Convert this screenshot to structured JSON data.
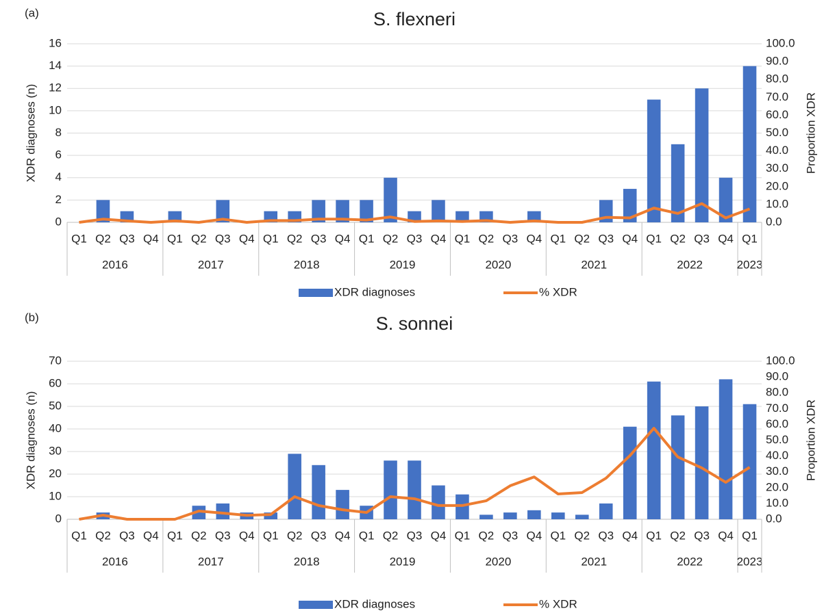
{
  "chart_data": [
    {
      "type": "bar",
      "panel_label": "(a)",
      "title": "S. flexneri",
      "y_label": "XDR diagnoses (n)",
      "y2_label": "Proportion XDR",
      "categories": [
        "Q1",
        "Q2",
        "Q3",
        "Q4",
        "Q1",
        "Q2",
        "Q3",
        "Q4",
        "Q1",
        "Q2",
        "Q3",
        "Q4",
        "Q1",
        "Q2",
        "Q3",
        "Q4",
        "Q1",
        "Q2",
        "Q3",
        "Q4",
        "Q1",
        "Q2",
        "Q3",
        "Q4",
        "Q1",
        "Q2",
        "Q3",
        "Q4",
        "Q1"
      ],
      "groups": [
        {
          "label": "2016",
          "size": 4
        },
        {
          "label": "2017",
          "size": 4
        },
        {
          "label": "2018",
          "size": 4
        },
        {
          "label": "2019",
          "size": 4
        },
        {
          "label": "2020",
          "size": 4
        },
        {
          "label": "2021",
          "size": 4
        },
        {
          "label": "2022",
          "size": 4
        },
        {
          "label": "2023",
          "size": 1
        }
      ],
      "series": [
        {
          "name": "XDR diagnoses",
          "type": "bar",
          "axis": "y",
          "color": "#4472c4",
          "values": [
            0,
            2,
            1,
            0,
            1,
            0,
            2,
            0,
            1,
            1,
            2,
            2,
            2,
            4,
            1,
            2,
            1,
            1,
            0,
            1,
            0,
            0,
            2,
            3,
            11,
            7,
            12,
            4,
            14
          ]
        },
        {
          "name": "% XDR",
          "type": "line",
          "axis": "y2",
          "color": "#ed7d31",
          "values": [
            0,
            1.8,
            0.8,
            0,
            0.8,
            0,
            1.8,
            0,
            1,
            1,
            1.8,
            1.8,
            1.3,
            3,
            0.5,
            0.8,
            0.5,
            1,
            0,
            0.8,
            0,
            0,
            2.8,
            2.5,
            8,
            5,
            10.5,
            2.5,
            7.5
          ]
        }
      ],
      "ylim": [
        0,
        16
      ],
      "yticks": [
        0,
        2,
        4,
        6,
        8,
        10,
        12,
        14,
        16
      ],
      "y2lim": [
        0,
        100
      ],
      "y2ticks": [
        {
          "value": 0,
          "label": "0.0"
        },
        {
          "value": 10,
          "label": "10.0"
        },
        {
          "value": 20,
          "label": "20.0"
        },
        {
          "value": 30,
          "label": "30.0"
        },
        {
          "value": 40,
          "label": "40.0"
        },
        {
          "value": 50,
          "label": "50.0"
        },
        {
          "value": 60,
          "label": "60.0"
        },
        {
          "value": 70,
          "label": "70.0"
        },
        {
          "value": 80,
          "label": "80.0"
        },
        {
          "value": 90,
          "label": "90.0"
        },
        {
          "value": 100,
          "label": "100.0"
        }
      ],
      "grid": true,
      "legend": "bottom"
    },
    {
      "type": "bar",
      "panel_label": "(b)",
      "title": "S. sonnei",
      "y_label": "XDR diagnoses (n)",
      "y2_label": "Proportion XDR",
      "categories": [
        "Q1",
        "Q2",
        "Q3",
        "Q4",
        "Q1",
        "Q2",
        "Q3",
        "Q4",
        "Q1",
        "Q2",
        "Q3",
        "Q4",
        "Q1",
        "Q2",
        "Q3",
        "Q4",
        "Q1",
        "Q2",
        "Q3",
        "Q4",
        "Q1",
        "Q2",
        "Q3",
        "Q4",
        "Q1",
        "Q2",
        "Q3",
        "Q4",
        "Q1"
      ],
      "groups": [
        {
          "label": "2016",
          "size": 4
        },
        {
          "label": "2017",
          "size": 4
        },
        {
          "label": "2018",
          "size": 4
        },
        {
          "label": "2019",
          "size": 4
        },
        {
          "label": "2020",
          "size": 4
        },
        {
          "label": "2021",
          "size": 4
        },
        {
          "label": "2022",
          "size": 4
        },
        {
          "label": "2023",
          "size": 1
        }
      ],
      "series": [
        {
          "name": "XDR diagnoses",
          "type": "bar",
          "axis": "y",
          "color": "#4472c4",
          "values": [
            0,
            3,
            0,
            0,
            0,
            6,
            7,
            3,
            3,
            29,
            24,
            13,
            6,
            26,
            26,
            15,
            11,
            2,
            3,
            4,
            3,
            2,
            7,
            41,
            61,
            46,
            50,
            62,
            51
          ]
        },
        {
          "name": "% XDR",
          "type": "line",
          "axis": "y2",
          "color": "#ed7d31",
          "values": [
            0,
            2.6,
            0,
            0,
            0,
            5.2,
            3.9,
            2.5,
            3,
            14.3,
            8.7,
            6,
            4.3,
            14.3,
            13,
            8.7,
            8.7,
            11.7,
            21.2,
            26.8,
            16,
            16.9,
            26,
            40.3,
            57.6,
            39.4,
            32.5,
            23.4,
            32.9
          ]
        }
      ],
      "ylim": [
        0,
        70
      ],
      "yticks": [
        0,
        10,
        20,
        30,
        40,
        50,
        60,
        70
      ],
      "y2lim": [
        0,
        100
      ],
      "y2ticks": [
        {
          "value": 0,
          "label": "0.0"
        },
        {
          "value": 10,
          "label": "10.0"
        },
        {
          "value": 20,
          "label": "20.0"
        },
        {
          "value": 30,
          "label": "30.0"
        },
        {
          "value": 40,
          "label": "40.0"
        },
        {
          "value": 50,
          "label": "50.0"
        },
        {
          "value": 60,
          "label": "60.0"
        },
        {
          "value": 70,
          "label": "70.0"
        },
        {
          "value": 80,
          "label": "80.0"
        },
        {
          "value": 90,
          "label": "90.0"
        },
        {
          "value": 100,
          "label": "100.0"
        }
      ],
      "grid": true,
      "legend": "bottom"
    }
  ]
}
